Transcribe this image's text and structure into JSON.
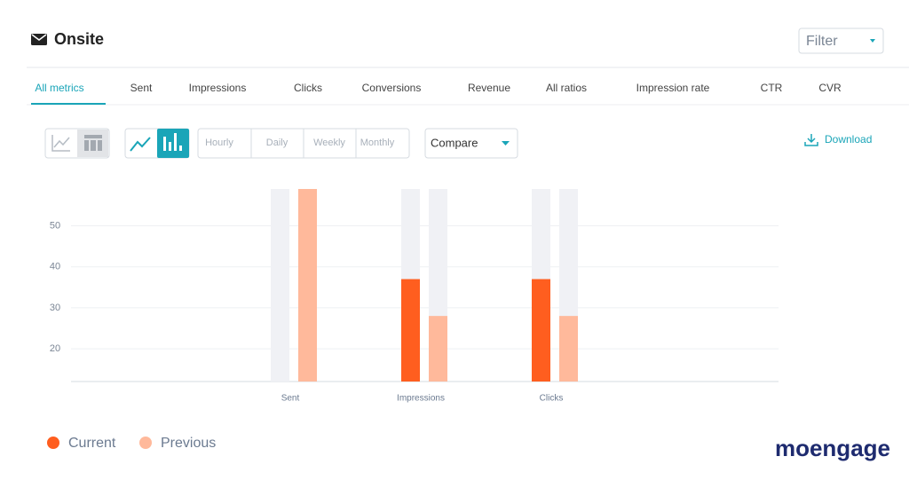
{
  "header": {
    "title": "Onsite",
    "filter": "Filter"
  },
  "tabs": [
    "All metrics",
    "Sent",
    "Impressions",
    "Clicks",
    "Conversions",
    "Revenue",
    "All ratios",
    "Impression rate",
    "CTR",
    "CVR"
  ],
  "toolbar": {
    "granularity": [
      "Hourly",
      "Daily",
      "Weekly",
      "Monthly"
    ],
    "compare": "Compare",
    "download": "Download"
  },
  "chart_data": {
    "type": "bar",
    "categories": [
      "Sent",
      "Impressions",
      "Clicks"
    ],
    "series": [
      {
        "name": "Current",
        "color": "#ff5e1f",
        "values": [
          null,
          37,
          37
        ]
      },
      {
        "name": "Previous",
        "color": "#ffb99b",
        "values": [
          59,
          28,
          28
        ]
      }
    ],
    "ylim": [
      12,
      59
    ],
    "yticks": [
      20,
      30,
      40,
      50
    ],
    "grid": true,
    "legend": "bottom-left"
  },
  "brand": "moengage"
}
